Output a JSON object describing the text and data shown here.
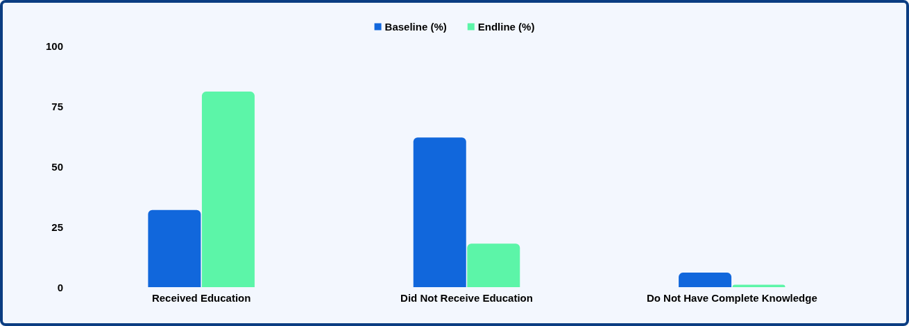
{
  "chart_data": {
    "type": "bar",
    "categories": [
      "Received Education",
      "Did Not Receive Education",
      "Do Not Have Complete Knowledge"
    ],
    "series": [
      {
        "name": "Baseline (%)",
        "color": "#1167dc",
        "values": [
          32,
          62,
          6
        ]
      },
      {
        "name": "Endline (%)",
        "color": "#5cf5a8",
        "values": [
          81,
          18,
          1
        ]
      }
    ],
    "ylim": [
      0,
      100
    ],
    "yticks": [
      0,
      25,
      50,
      75,
      100
    ],
    "grid": false,
    "legend": "top"
  }
}
